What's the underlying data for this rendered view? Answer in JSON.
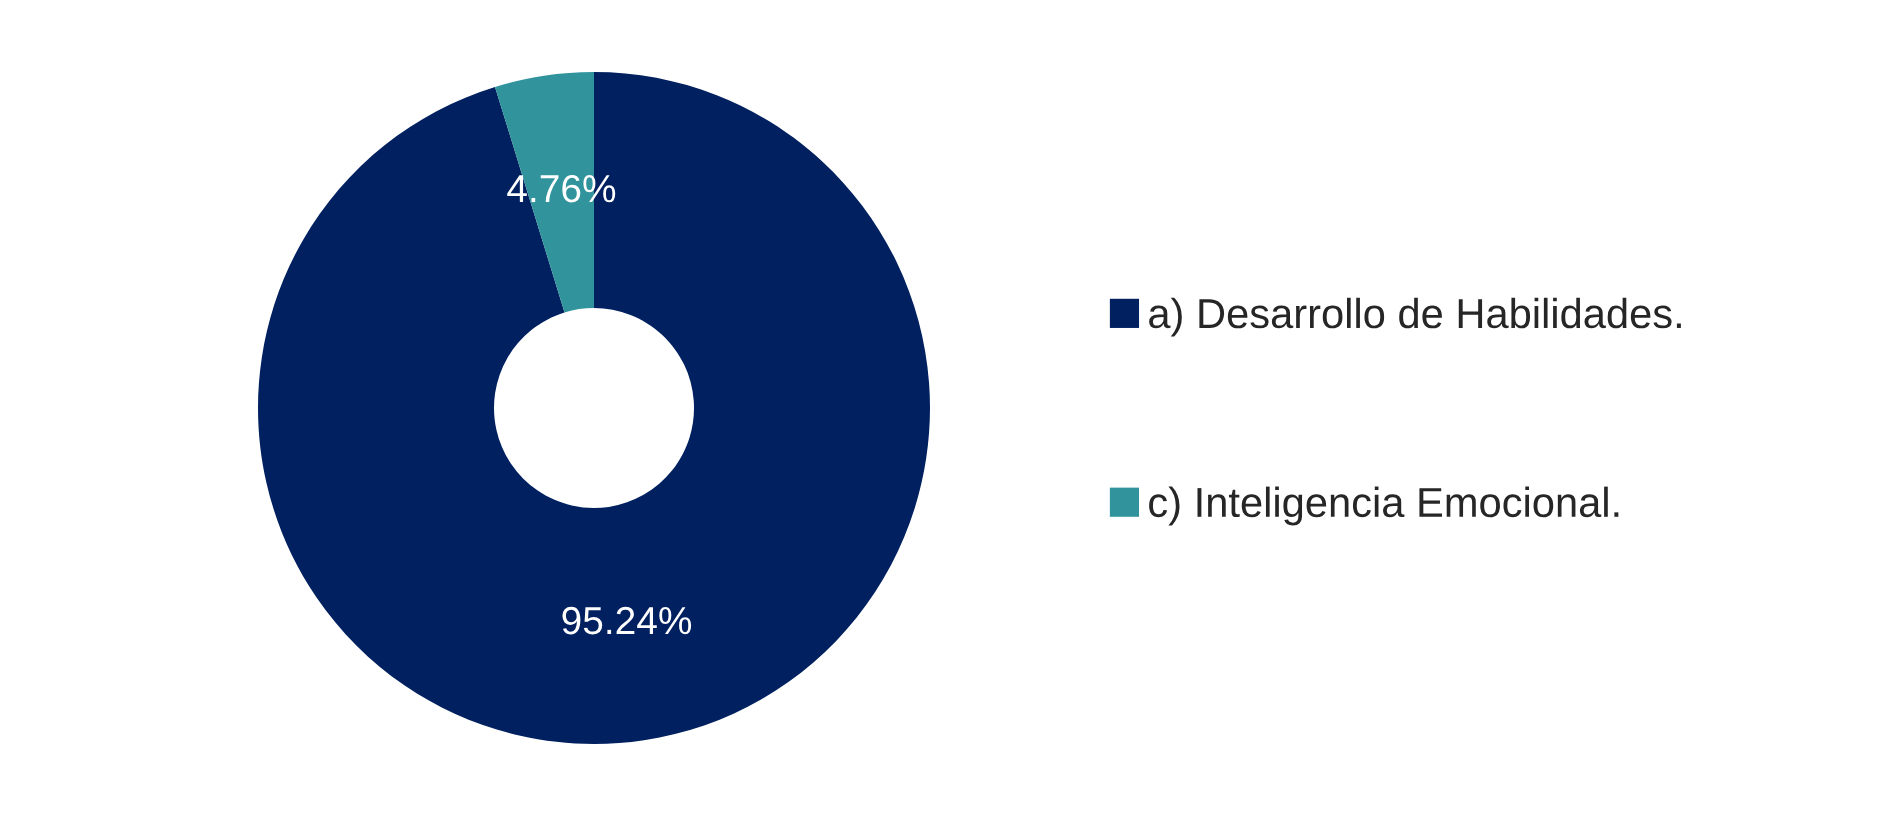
{
  "chart_data": {
    "type": "donut",
    "categories": [
      "a) Desarrollo de Habilidades.",
      "c) Inteligencia Emocional."
    ],
    "values": [
      95.24,
      4.76
    ],
    "colors": [
      "#002060",
      "#31949c"
    ],
    "value_labels": [
      "95.24%",
      "4.76%"
    ],
    "legend": "right"
  }
}
